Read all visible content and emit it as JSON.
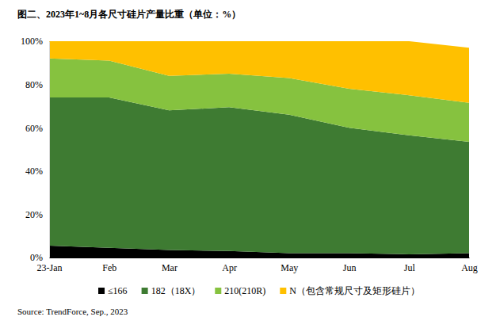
{
  "chart_data": {
    "type": "area",
    "stacked": true,
    "title": "图二、2023年1~8月各尺寸硅片产量比重（单位：%）",
    "source": "Source: TrendForce, Sep., 2023",
    "categories": [
      "23-Jan",
      "Feb",
      "Mar",
      "Apr",
      "May",
      "Jun",
      "Jul",
      "Aug"
    ],
    "series": [
      {
        "name": "≤166",
        "color": "#000000",
        "values": [
          5.5,
          4.5,
          3.5,
          3,
          2,
          2,
          1.5,
          2
        ]
      },
      {
        "name": "182（18X）",
        "color": "#3e7b32",
        "values": [
          68.5,
          69.5,
          64.5,
          66.5,
          64,
          58,
          55,
          51.5
        ]
      },
      {
        "name": "210(210R)",
        "color": "#86c23f",
        "values": [
          18,
          17,
          16,
          15.5,
          17,
          18,
          18.5,
          18
        ]
      },
      {
        "name": "N（包含常规尺寸及矩形硅片）",
        "color": "#ffc000",
        "values": [
          8,
          9,
          16,
          15,
          17,
          22,
          25,
          25.5
        ]
      }
    ],
    "ylim": [
      0,
      100
    ],
    "yticks": [
      {
        "value": 0,
        "label": "0%"
      },
      {
        "value": 20,
        "label": "20%"
      },
      {
        "value": 40,
        "label": "40%"
      },
      {
        "value": 60,
        "label": "60%"
      },
      {
        "value": 80,
        "label": "80%"
      },
      {
        "value": 100,
        "label": "100%"
      }
    ],
    "grid": false,
    "legend": "bottom"
  }
}
